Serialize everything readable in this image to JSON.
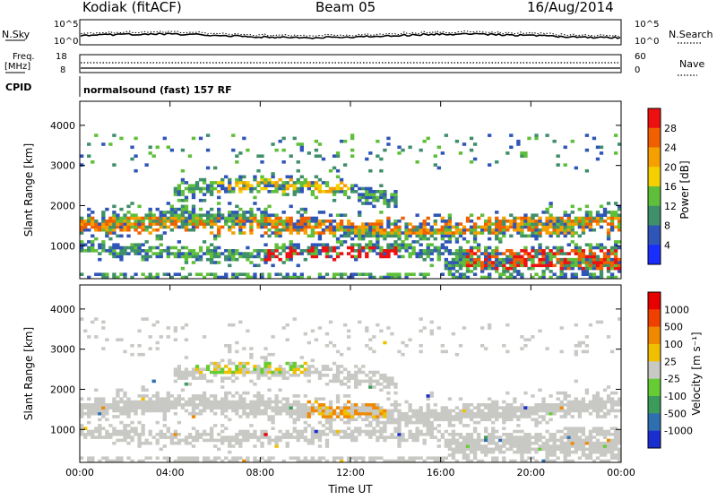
{
  "header": {
    "station": "Kodiak (fitACF)",
    "beam": "Beam 05",
    "date": "16/Aug/2014"
  },
  "top_panels": {
    "nsky": {
      "label": "N.Sky",
      "ticks": [
        "10^5",
        "10^0"
      ],
      "right_label": "N.Search",
      "right_ticks": [
        "10^5",
        "10^0"
      ]
    },
    "freq": {
      "label_line1": "Freq.",
      "label_line2": "[MHz]",
      "ticks": [
        "18",
        "8"
      ],
      "right_label": "Nave",
      "right_ticks": [
        "60",
        "0"
      ]
    },
    "cpid": {
      "label": "CPID",
      "text": "normalsound (fast) 157 RF"
    }
  },
  "chart_data": [
    {
      "type": "heatmap",
      "title": "",
      "ylabel": "Slant Range [km]",
      "xlabel": "",
      "x_ticks": [
        "00:00",
        "04:00",
        "08:00",
        "12:00",
        "16:00",
        "20:00",
        "00:00"
      ],
      "ylim": [
        180,
        4600
      ],
      "y_ticks": [
        1000,
        2000,
        3000,
        4000
      ],
      "colorbar": {
        "label": "Power [dB]",
        "ticks": [
          "4",
          "8",
          "12",
          "16",
          "20",
          "24",
          "28"
        ],
        "colors": [
          "#1a2dff",
          "#2f55b8",
          "#3f8f6a",
          "#5fbf3a",
          "#f4d000",
          "#f5a000",
          "#f06000",
          "#ee1010"
        ]
      }
    },
    {
      "type": "heatmap",
      "title": "",
      "ylabel": "Slant Range [km]",
      "xlabel": "Time UT",
      "x_ticks": [
        "00:00",
        "04:00",
        "08:00",
        "12:00",
        "16:00",
        "20:00",
        "00:00"
      ],
      "ylim": [
        180,
        4600
      ],
      "y_ticks": [
        1000,
        2000,
        3000,
        4000
      ],
      "colorbar": {
        "label": "Velocity [m s⁻¹]",
        "ticks": [
          "1000",
          "500",
          "100",
          "25",
          "-25",
          "-100",
          "-500",
          "-1000"
        ],
        "colors": [
          "#1a2dcf",
          "#2e6fb0",
          "#3a9b5a",
          "#66cc33",
          "#c8c8c4",
          "#f0c000",
          "#f08800",
          "#f04000",
          "#e80000"
        ]
      }
    }
  ]
}
